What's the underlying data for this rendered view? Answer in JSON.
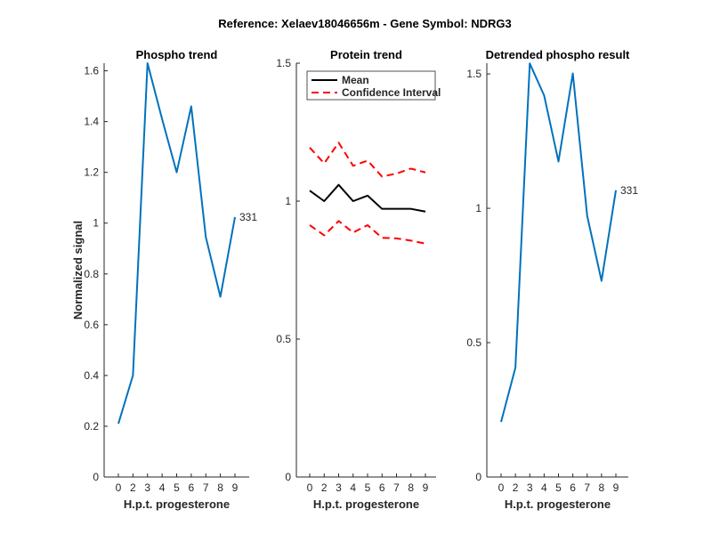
{
  "chart_data": [
    {
      "type": "line",
      "title": "Phospho trend",
      "xlabel": "H.p.t. progesterone",
      "ylabel": "Normalized signal",
      "categories": [
        "0",
        "2",
        "3",
        "4",
        "5",
        "6",
        "7",
        "8",
        "9"
      ],
      "ylim": [
        0,
        1.63
      ],
      "yticks": [
        0,
        0.2,
        0.4,
        0.6,
        0.8,
        1,
        1.2,
        1.4,
        1.6
      ],
      "ytick_labels": [
        "0",
        "0.2",
        "0.4",
        "0.6",
        "0.8",
        "1",
        "1.2",
        "1.4",
        "1.6"
      ],
      "series": [
        {
          "name": "331",
          "color": "#0072BD",
          "values": [
            0.21,
            0.4,
            1.63,
            1.41,
            1.2,
            1.46,
            0.945,
            0.71,
            1.024
          ]
        }
      ],
      "annotation": "331"
    },
    {
      "type": "line",
      "title": "Protein trend",
      "xlabel": "H.p.t. progesterone",
      "ylabel": "",
      "categories": [
        "0",
        "2",
        "3",
        "4",
        "5",
        "6",
        "7",
        "8",
        "9"
      ],
      "ylim": [
        0,
        1.5
      ],
      "yticks": [
        0,
        0.5,
        1,
        1.5
      ],
      "ytick_labels": [
        "0",
        "0.5",
        "1",
        "1.5"
      ],
      "legend_position": "top-left",
      "series": [
        {
          "name": "Mean",
          "color": "#000000",
          "dash": "solid",
          "values": [
            1.038,
            1.0,
            1.059,
            1.0,
            1.02,
            0.972,
            0.972,
            0.972,
            0.962
          ]
        },
        {
          "name": "Confidence Interval",
          "color": "#FF0000",
          "dash": "dashed",
          "values": [
            1.194,
            1.137,
            1.212,
            1.128,
            1.147,
            1.089,
            1.1,
            1.118,
            1.104
          ]
        },
        {
          "name": "Confidence Interval (lower)",
          "color": "#FF0000",
          "dash": "dashed",
          "legend": false,
          "values": [
            0.913,
            0.876,
            0.928,
            0.886,
            0.913,
            0.867,
            0.865,
            0.857,
            0.846
          ]
        }
      ],
      "legend": [
        "Mean",
        "Confidence Interval"
      ]
    },
    {
      "type": "line",
      "title": "Detrended phospho result",
      "xlabel": "H.p.t. progesterone",
      "ylabel": "",
      "categories": [
        "0",
        "2",
        "3",
        "4",
        "5",
        "6",
        "7",
        "8",
        "9"
      ],
      "ylim": [
        0,
        1.54
      ],
      "yticks": [
        0,
        0.5,
        1,
        1.5
      ],
      "ytick_labels": [
        "0",
        "0.5",
        "1",
        "1.5"
      ],
      "series": [
        {
          "name": "331",
          "color": "#0072BD",
          "values": [
            0.205,
            0.407,
            1.539,
            1.42,
            1.174,
            1.502,
            0.972,
            0.73,
            1.067
          ]
        }
      ],
      "annotation": "331"
    }
  ],
  "figure_title": "Reference:  Xelaev18046656m - Gene Symbol:  NDRG3"
}
